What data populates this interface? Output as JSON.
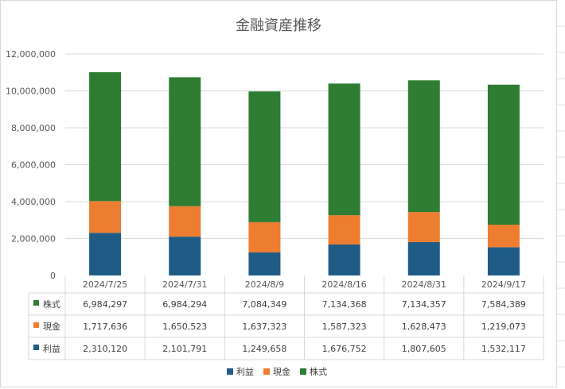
{
  "chart_data": {
    "type": "bar",
    "stacked": true,
    "title": "金融資産推移",
    "categories": [
      "2024/7/25",
      "2024/7/31",
      "2024/8/9",
      "2024/8/16",
      "2024/8/31",
      "2024/9/17"
    ],
    "series": [
      {
        "name": "利益",
        "color": "#1f5c85",
        "values": [
          2310120,
          2101791,
          1249658,
          1676752,
          1807605,
          1532117
        ]
      },
      {
        "name": "現金",
        "color": "#ed7d31",
        "values": [
          1717636,
          1650523,
          1637323,
          1587323,
          1628473,
          1219073
        ]
      },
      {
        "name": "株式",
        "color": "#2e7d32",
        "values": [
          6984297,
          6984294,
          7084349,
          7134368,
          7134357,
          7584389
        ]
      }
    ],
    "ylim": [
      0,
      12000000
    ],
    "yticks": [
      0,
      2000000,
      4000000,
      6000000,
      8000000,
      10000000,
      12000000
    ],
    "ytick_labels": [
      "0",
      "2,000,000",
      "4,000,000",
      "6,000,000",
      "8,000,000",
      "10,000,000",
      "12,000,000"
    ],
    "grid": true,
    "data_table": {
      "rows": [
        {
          "name": "株式",
          "color": "#2e7d32",
          "cells": [
            "6,984,297",
            "6,984,294",
            "7,084,349",
            "7,134,368",
            "7,134,357",
            "7,584,389"
          ]
        },
        {
          "name": "現金",
          "color": "#ed7d31",
          "cells": [
            "1,717,636",
            "1,650,523",
            "1,637,323",
            "1,587,323",
            "1,628,473",
            "1,219,073"
          ]
        },
        {
          "name": "利益",
          "color": "#1f5c85",
          "cells": [
            "2,310,120",
            "2,101,791",
            "1,249,658",
            "1,676,752",
            "1,807,605",
            "1,532,117"
          ]
        }
      ]
    },
    "legend": {
      "position": "bottom",
      "items": [
        "利益",
        "現金",
        "株式"
      ]
    }
  }
}
